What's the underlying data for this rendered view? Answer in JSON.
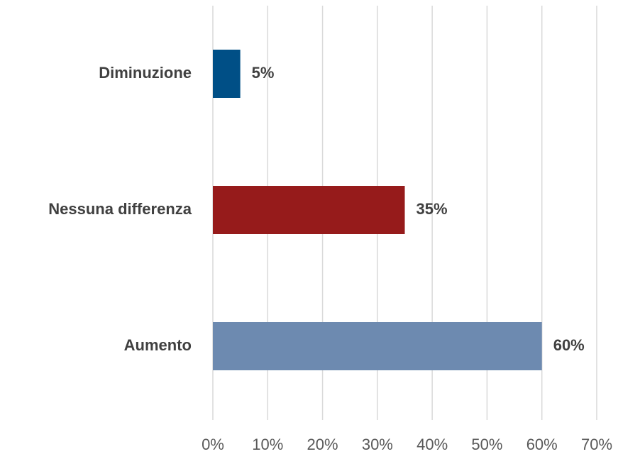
{
  "chart_data": {
    "type": "bar",
    "orientation": "horizontal",
    "categories": [
      "Diminuzione",
      "Nessuna differenza",
      "Aumento"
    ],
    "values": [
      5,
      35,
      60
    ],
    "value_labels": [
      "5%",
      "35%",
      "60%"
    ],
    "colors": [
      "#004f86",
      "#961b1b",
      "#6d8ab0"
    ],
    "xlim": [
      0,
      70
    ],
    "xticks": [
      {
        "value": 0,
        "label": "0%"
      },
      {
        "value": 10,
        "label": "10%"
      },
      {
        "value": 20,
        "label": "20%"
      },
      {
        "value": 30,
        "label": "30%"
      },
      {
        "value": 40,
        "label": "40%"
      },
      {
        "value": 50,
        "label": "50%"
      },
      {
        "value": 60,
        "label": "60%"
      },
      {
        "value": 70,
        "label": "70%"
      }
    ],
    "grid": true
  }
}
